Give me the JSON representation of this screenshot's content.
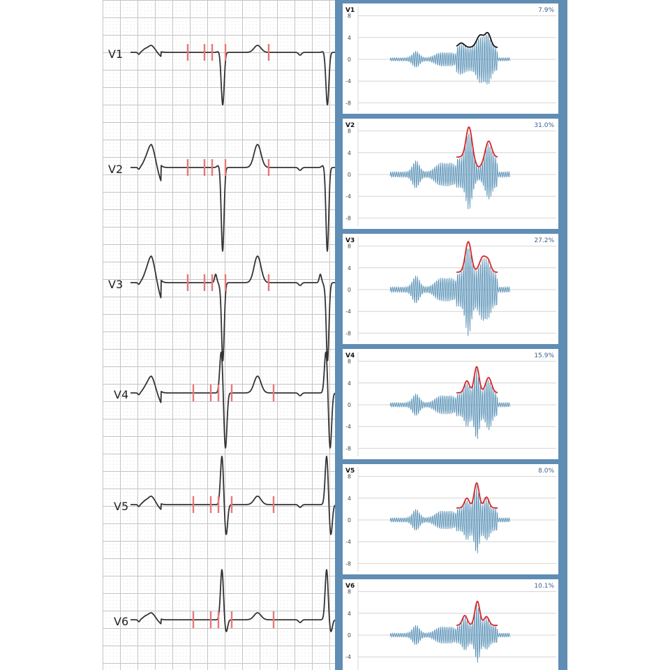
{
  "ecg": {
    "leads": [
      {
        "label": "V1"
      },
      {
        "label": "V2"
      },
      {
        "label": "V3"
      },
      {
        "label": "V4"
      },
      {
        "label": "V5"
      },
      {
        "label": "V6"
      }
    ]
  },
  "colors": {
    "grid_major": "#c4c4c4",
    "grid_minor": "#d9d9d9",
    "trace": "#333333",
    "marker": "#e8777a",
    "panel_bg": "#5f8db4",
    "waveform": "#5b93b7",
    "envelope_red": "#d62728",
    "envelope_black": "#111111",
    "percent_text": "#3a5f8a"
  },
  "chart_data": [
    {
      "type": "line",
      "title": "V1",
      "annotation": "7.9%",
      "ylim": [
        -9.5,
        10
      ],
      "yticks": [
        "8",
        "4",
        "0",
        "-4",
        "-8"
      ],
      "envelope_color": "black",
      "envelope_peak": 5.0,
      "waveform_peak": 5.2,
      "waveform_trough": -5.2
    },
    {
      "type": "line",
      "title": "V2",
      "annotation": "31.0%",
      "ylim": [
        -9.5,
        10
      ],
      "yticks": [
        "8",
        "4",
        "0",
        "-4",
        "-8"
      ],
      "envelope_color": "red",
      "envelope_peak": 8.8,
      "waveform_peak": 8.8,
      "waveform_trough": -7.0
    },
    {
      "type": "line",
      "title": "V3",
      "annotation": "27.2%",
      "ylim": [
        -9.5,
        10
      ],
      "yticks": [
        "8",
        "4",
        "0",
        "-4",
        "-8"
      ],
      "envelope_color": "red",
      "envelope_peak": 8.8,
      "waveform_peak": 8.8,
      "waveform_trough": -9.0
    },
    {
      "type": "line",
      "title": "V4",
      "annotation": "15.9%",
      "ylim": [
        -9.5,
        10
      ],
      "yticks": [
        "8",
        "4",
        "0",
        "-4",
        "-8"
      ],
      "envelope_color": "red",
      "envelope_peak": 7.0,
      "waveform_peak": 7.0,
      "waveform_trough": -7.0
    },
    {
      "type": "line",
      "title": "V5",
      "annotation": "8.0%",
      "ylim": [
        -9.5,
        10
      ],
      "yticks": [
        "8",
        "4",
        "0",
        "-4",
        "-8"
      ],
      "envelope_color": "red",
      "envelope_peak": 6.8,
      "waveform_peak": 6.8,
      "waveform_trough": -6.8
    },
    {
      "type": "line",
      "title": "V6",
      "annotation": "10.1%",
      "ylim": [
        -6.2,
        10
      ],
      "yticks": [
        "8",
        "4",
        "0",
        "-4"
      ],
      "envelope_color": "red",
      "envelope_peak": 6.3,
      "waveform_peak": 6.3,
      "waveform_trough": -5.5
    }
  ]
}
